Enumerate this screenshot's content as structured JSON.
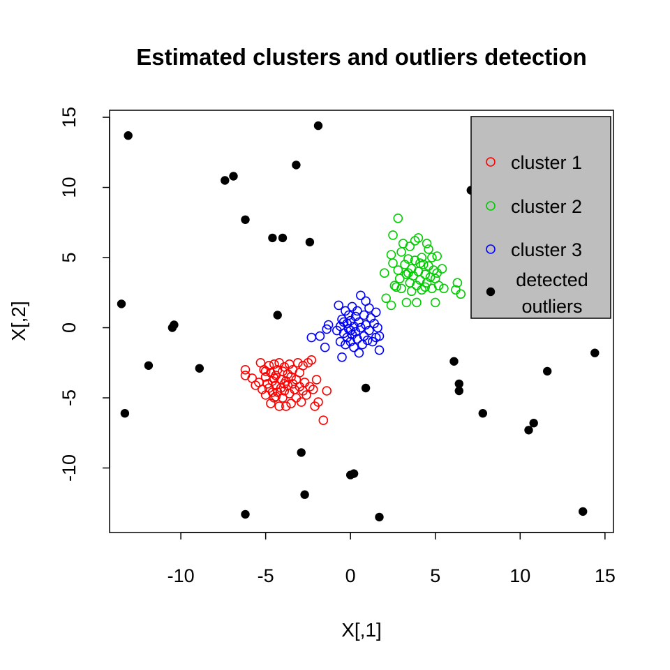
{
  "chart_data": {
    "type": "scatter",
    "title": "Estimated clusters and outliers detection",
    "xlabel": "X[,1]",
    "ylabel": "X[,2]",
    "xlim": [
      -14.2,
      15.5
    ],
    "ylim": [
      -14.6,
      15.5
    ],
    "xticks": [
      -10,
      -5,
      0,
      5,
      10,
      15
    ],
    "yticks": [
      -10,
      -5,
      0,
      5,
      10,
      15
    ],
    "grid": false,
    "legend_position": "top-right",
    "series": [
      {
        "name": "cluster 1",
        "color": "#ff0000",
        "marker": "open-circle",
        "points": [
          [
            -6.2,
            -3.0
          ],
          [
            -6.2,
            -3.4
          ],
          [
            -5.8,
            -3.6
          ],
          [
            -5.6,
            -4.1
          ],
          [
            -5.4,
            -3.9
          ],
          [
            -5.3,
            -2.5
          ],
          [
            -5.2,
            -4.4
          ],
          [
            -5.1,
            -3.0
          ],
          [
            -5.0,
            -3.5
          ],
          [
            -5.0,
            -4.8
          ],
          [
            -4.9,
            -4.0
          ],
          [
            -4.8,
            -2.7
          ],
          [
            -4.8,
            -4.3
          ],
          [
            -4.7,
            -3.2
          ],
          [
            -4.7,
            -5.4
          ],
          [
            -4.6,
            -3.8
          ],
          [
            -4.6,
            -4.6
          ],
          [
            -4.5,
            -2.6
          ],
          [
            -4.5,
            -5.0
          ],
          [
            -4.4,
            -3.4
          ],
          [
            -4.4,
            -4.1
          ],
          [
            -4.3,
            -3.0
          ],
          [
            -4.3,
            -4.6
          ],
          [
            -4.2,
            -5.6
          ],
          [
            -4.2,
            -2.5
          ],
          [
            -4.1,
            -3.7
          ],
          [
            -4.1,
            -4.3
          ],
          [
            -4.0,
            -3.1
          ],
          [
            -4.0,
            -5.0
          ],
          [
            -3.9,
            -2.8
          ],
          [
            -3.9,
            -4.5
          ],
          [
            -3.8,
            -3.8
          ],
          [
            -3.8,
            -5.6
          ],
          [
            -3.7,
            -3.3
          ],
          [
            -3.7,
            -4.1
          ],
          [
            -3.6,
            -2.6
          ],
          [
            -3.6,
            -4.7
          ],
          [
            -3.5,
            -3.5
          ],
          [
            -3.5,
            -5.4
          ],
          [
            -3.4,
            -4.0
          ],
          [
            -3.4,
            -3.0
          ],
          [
            -3.3,
            -4.4
          ],
          [
            -3.2,
            -3.7
          ],
          [
            -3.2,
            -5.0
          ],
          [
            -3.1,
            -2.5
          ],
          [
            -3.0,
            -4.2
          ],
          [
            -3.0,
            -3.2
          ],
          [
            -2.9,
            -5.3
          ],
          [
            -2.8,
            -4.5
          ],
          [
            -2.8,
            -2.7
          ],
          [
            -2.7,
            -3.9
          ],
          [
            -2.6,
            -4.8
          ],
          [
            -2.5,
            -2.5
          ],
          [
            -2.4,
            -4.2
          ],
          [
            -2.3,
            -2.3
          ],
          [
            -2.2,
            -4.4
          ],
          [
            -2.1,
            -5.6
          ],
          [
            -2.0,
            -3.7
          ],
          [
            -1.9,
            -5.3
          ],
          [
            -1.6,
            -6.6
          ],
          [
            -1.4,
            -4.5
          ],
          [
            -4.4,
            -4.9
          ],
          [
            -5.0,
            -3.1
          ],
          [
            -3.9,
            -4.0
          ],
          [
            -4.5,
            -3.6
          ]
        ]
      },
      {
        "name": "cluster 2",
        "color": "#00cd00",
        "marker": "open-circle",
        "points": [
          [
            2.0,
            3.9
          ],
          [
            2.1,
            2.1
          ],
          [
            2.4,
            1.6
          ],
          [
            2.4,
            5.2
          ],
          [
            2.5,
            4.6
          ],
          [
            2.5,
            6.6
          ],
          [
            2.6,
            3.0
          ],
          [
            2.7,
            2.9
          ],
          [
            2.8,
            7.8
          ],
          [
            2.8,
            4.1
          ],
          [
            2.9,
            3.5
          ],
          [
            3.0,
            5.4
          ],
          [
            3.0,
            2.8
          ],
          [
            3.1,
            6.0
          ],
          [
            3.2,
            4.5
          ],
          [
            3.3,
            3.8
          ],
          [
            3.3,
            1.8
          ],
          [
            3.4,
            4.9
          ],
          [
            3.5,
            3.2
          ],
          [
            3.5,
            5.8
          ],
          [
            3.6,
            2.6
          ],
          [
            3.6,
            4.2
          ],
          [
            3.7,
            3.7
          ],
          [
            3.8,
            6.2
          ],
          [
            3.8,
            4.8
          ],
          [
            3.9,
            1.8
          ],
          [
            3.9,
            3.0
          ],
          [
            4.0,
            6.4
          ],
          [
            4.0,
            4.0
          ],
          [
            4.1,
            3.4
          ],
          [
            4.2,
            5.0
          ],
          [
            4.2,
            2.7
          ],
          [
            4.3,
            4.5
          ],
          [
            4.4,
            3.8
          ],
          [
            4.5,
            6.0
          ],
          [
            4.5,
            3.2
          ],
          [
            4.6,
            4.4
          ],
          [
            4.6,
            5.6
          ],
          [
            4.7,
            3.6
          ],
          [
            4.8,
            2.8
          ],
          [
            4.8,
            5.0
          ],
          [
            4.9,
            4.1
          ],
          [
            5.0,
            3.5
          ],
          [
            5.0,
            1.8
          ],
          [
            5.1,
            5.1
          ],
          [
            5.1,
            3.9
          ],
          [
            5.2,
            3.0
          ],
          [
            5.4,
            4.2
          ],
          [
            5.5,
            2.8
          ],
          [
            6.2,
            2.7
          ],
          [
            6.3,
            3.2
          ],
          [
            6.5,
            2.4
          ],
          [
            4.1,
            4.6
          ],
          [
            3.4,
            3.9
          ],
          [
            4.4,
            2.9
          ]
        ]
      },
      {
        "name": "cluster 3",
        "color": "#0000ff",
        "marker": "open-circle",
        "points": [
          [
            -2.3,
            -0.7
          ],
          [
            -1.8,
            -0.6
          ],
          [
            -1.5,
            -1.4
          ],
          [
            -1.4,
            -0.1
          ],
          [
            -1.3,
            0.2
          ],
          [
            -0.8,
            -0.2
          ],
          [
            -0.7,
            1.6
          ],
          [
            -0.6,
            0.1
          ],
          [
            -0.6,
            -1.0
          ],
          [
            -0.5,
            -2.1
          ],
          [
            -0.5,
            0.6
          ],
          [
            -0.4,
            -0.4
          ],
          [
            -0.3,
            1.2
          ],
          [
            -0.3,
            -1.2
          ],
          [
            -0.2,
            0.3
          ],
          [
            -0.2,
            -0.7
          ],
          [
            -0.1,
            0.9
          ],
          [
            -0.1,
            -0.1
          ],
          [
            0.0,
            -1.0
          ],
          [
            0.0,
            0.5
          ],
          [
            0.1,
            1.5
          ],
          [
            0.1,
            -0.5
          ],
          [
            0.2,
            0.1
          ],
          [
            0.2,
            -1.4
          ],
          [
            0.3,
            0.8
          ],
          [
            0.3,
            -0.3
          ],
          [
            0.4,
            1.2
          ],
          [
            0.4,
            -0.8
          ],
          [
            0.5,
            0.4
          ],
          [
            0.5,
            -1.8
          ],
          [
            0.6,
            2.3
          ],
          [
            0.6,
            0.0
          ],
          [
            0.7,
            -1.2
          ],
          [
            0.8,
            0.9
          ],
          [
            0.8,
            -0.6
          ],
          [
            0.9,
            1.9
          ],
          [
            0.9,
            0.2
          ],
          [
            1.0,
            -0.9
          ],
          [
            1.1,
            1.4
          ],
          [
            1.1,
            -0.2
          ],
          [
            1.2,
            0.7
          ],
          [
            1.3,
            -1.0
          ],
          [
            1.4,
            0.3
          ],
          [
            1.5,
            -0.7
          ],
          [
            1.5,
            1.1
          ],
          [
            1.6,
            0.0
          ],
          [
            1.7,
            -0.6
          ],
          [
            1.7,
            -1.6
          ],
          [
            0.0,
            -0.2
          ],
          [
            -0.4,
            0.4
          ]
        ]
      },
      {
        "name": "detected outliers",
        "color": "#000000",
        "marker": "filled-circle",
        "points": [
          [
            -13.1,
            13.7
          ],
          [
            -1.9,
            14.4
          ],
          [
            -3.2,
            11.6
          ],
          [
            -6.9,
            10.8
          ],
          [
            -7.4,
            10.5
          ],
          [
            7.1,
            9.8
          ],
          [
            -6.2,
            7.7
          ],
          [
            -4.6,
            6.4
          ],
          [
            -4.0,
            6.4
          ],
          [
            -2.4,
            6.1
          ],
          [
            -13.5,
            1.7
          ],
          [
            -4.3,
            0.9
          ],
          [
            -10.4,
            0.2
          ],
          [
            -10.5,
            0.0
          ],
          [
            -11.9,
            -2.7
          ],
          [
            -8.9,
            -2.9
          ],
          [
            14.4,
            -1.8
          ],
          [
            6.1,
            -2.4
          ],
          [
            6.4,
            -4.0
          ],
          [
            6.4,
            -4.5
          ],
          [
            11.6,
            -3.1
          ],
          [
            0.9,
            -4.3
          ],
          [
            -13.3,
            -6.1
          ],
          [
            7.8,
            -6.1
          ],
          [
            10.8,
            -6.8
          ],
          [
            10.5,
            -7.3
          ],
          [
            -2.9,
            -8.9
          ],
          [
            0.2,
            -10.4
          ],
          [
            0.0,
            -10.5
          ],
          [
            -2.7,
            -11.9
          ],
          [
            -6.2,
            -13.3
          ],
          [
            13.7,
            -13.1
          ],
          [
            1.7,
            -13.5
          ]
        ]
      }
    ]
  }
}
